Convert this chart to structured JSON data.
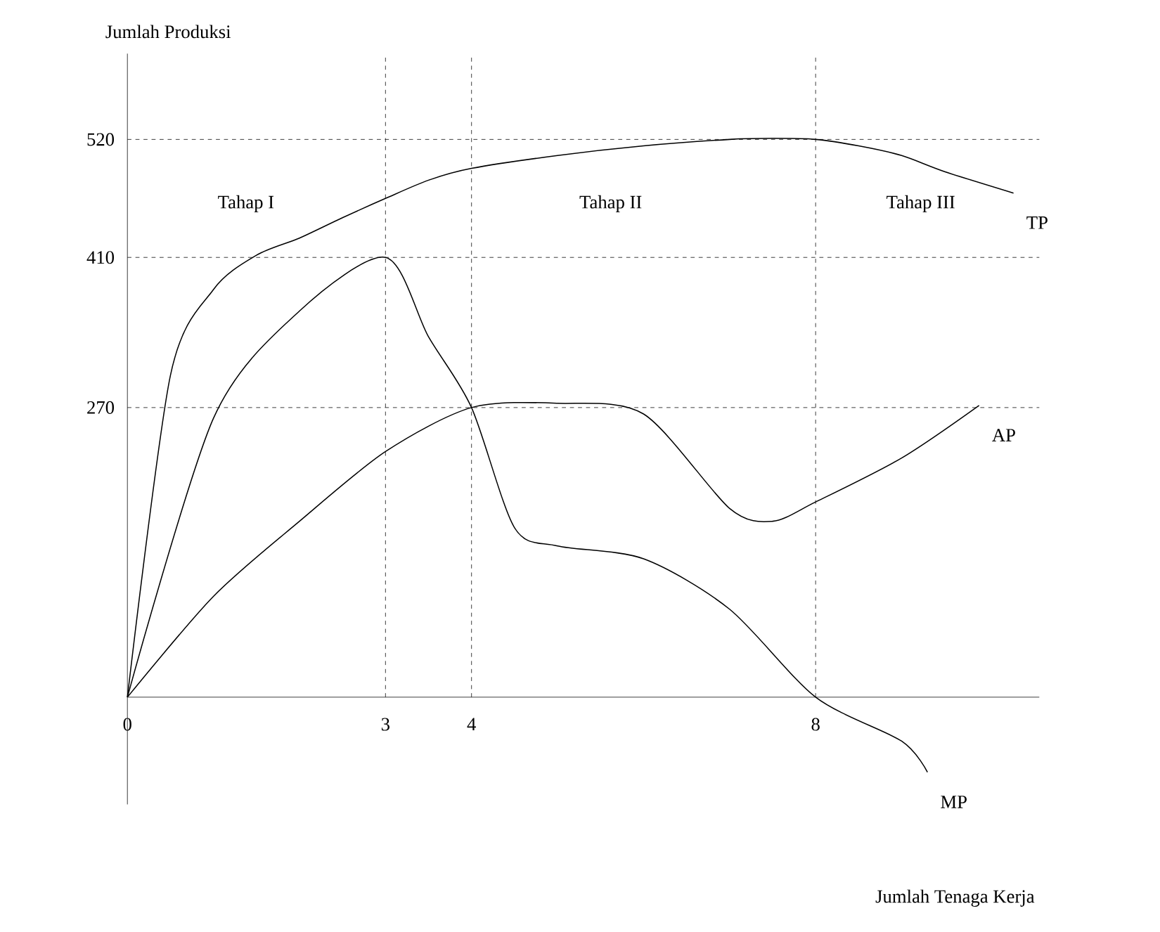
{
  "chart_data": {
    "type": "line",
    "xlabel": "Jumlah Tenaga Kerja",
    "ylabel": "Jumlah Produksi",
    "xlim": [
      0,
      10.6
    ],
    "ylim": [
      -100,
      600
    ],
    "xticks": [
      0,
      3,
      4,
      8
    ],
    "yticks": [
      270,
      410,
      520
    ],
    "series": [
      {
        "name": "TP",
        "color": "#000000",
        "x": [
          0,
          0.5,
          1,
          1.5,
          2,
          2.5,
          3,
          3.5,
          4,
          5,
          6,
          7,
          7.5,
          8,
          8.5,
          9,
          9.5,
          10.3
        ],
        "values": [
          0,
          300,
          380,
          412,
          428,
          447,
          465,
          482,
          493,
          505,
          514,
          520,
          521,
          520,
          514,
          505,
          490,
          470
        ]
      },
      {
        "name": "AP",
        "color": "#000000",
        "x": [
          0,
          1,
          2,
          3,
          4,
          5,
          6,
          7,
          7.5,
          8,
          9,
          9.9
        ],
        "values": [
          0,
          94,
          164,
          229,
          270,
          274,
          264,
          176,
          164,
          182,
          223,
          272
        ]
      },
      {
        "name": "MP",
        "color": "#000000",
        "x": [
          0,
          1,
          2,
          3,
          3.5,
          4,
          4.5,
          5,
          6,
          7,
          8,
          9,
          9.3
        ],
        "values": [
          0,
          260,
          360,
          410,
          336,
          270,
          158,
          141,
          129,
          82,
          0,
          -41,
          -70
        ]
      }
    ],
    "ref_lines": [
      {
        "axis": "y",
        "value": 520,
        "line_style": "dashed"
      },
      {
        "axis": "y",
        "value": 410,
        "line_style": "dashed"
      },
      {
        "axis": "y",
        "value": 270,
        "line_style": "dashed"
      },
      {
        "axis": "x",
        "value": 3,
        "line_style": "dashed"
      },
      {
        "axis": "x",
        "value": 4,
        "line_style": "dashed"
      },
      {
        "axis": "x",
        "value": 8,
        "line_style": "dashed"
      }
    ],
    "annotations": [
      "Tahap I",
      "Tahap II",
      "Tahap III"
    ],
    "grid": false,
    "legend": false,
    "marker": "none",
    "line_style": "solid"
  }
}
